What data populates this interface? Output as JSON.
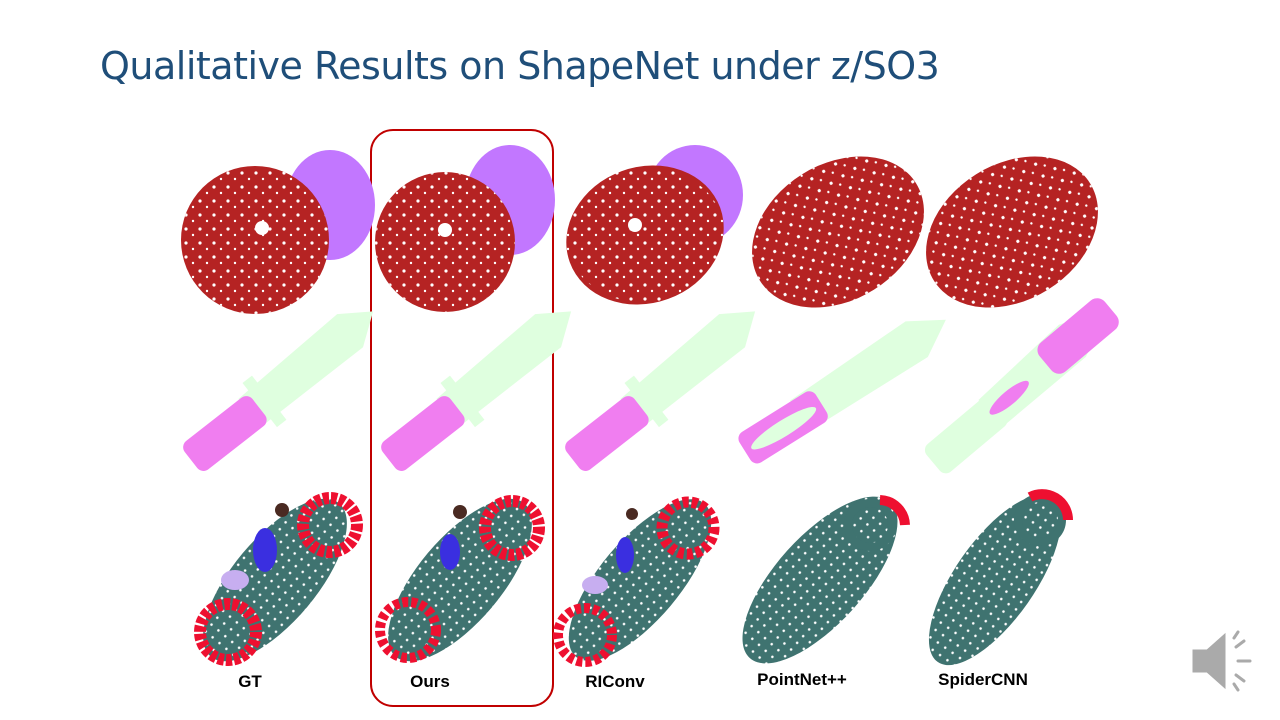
{
  "slide": {
    "title": "Qualitative Results on ShapeNet under z/SO3",
    "methods": [
      "GT",
      "Ours",
      "RIConv",
      "PointNet++",
      "SpiderCNN"
    ]
  }
}
